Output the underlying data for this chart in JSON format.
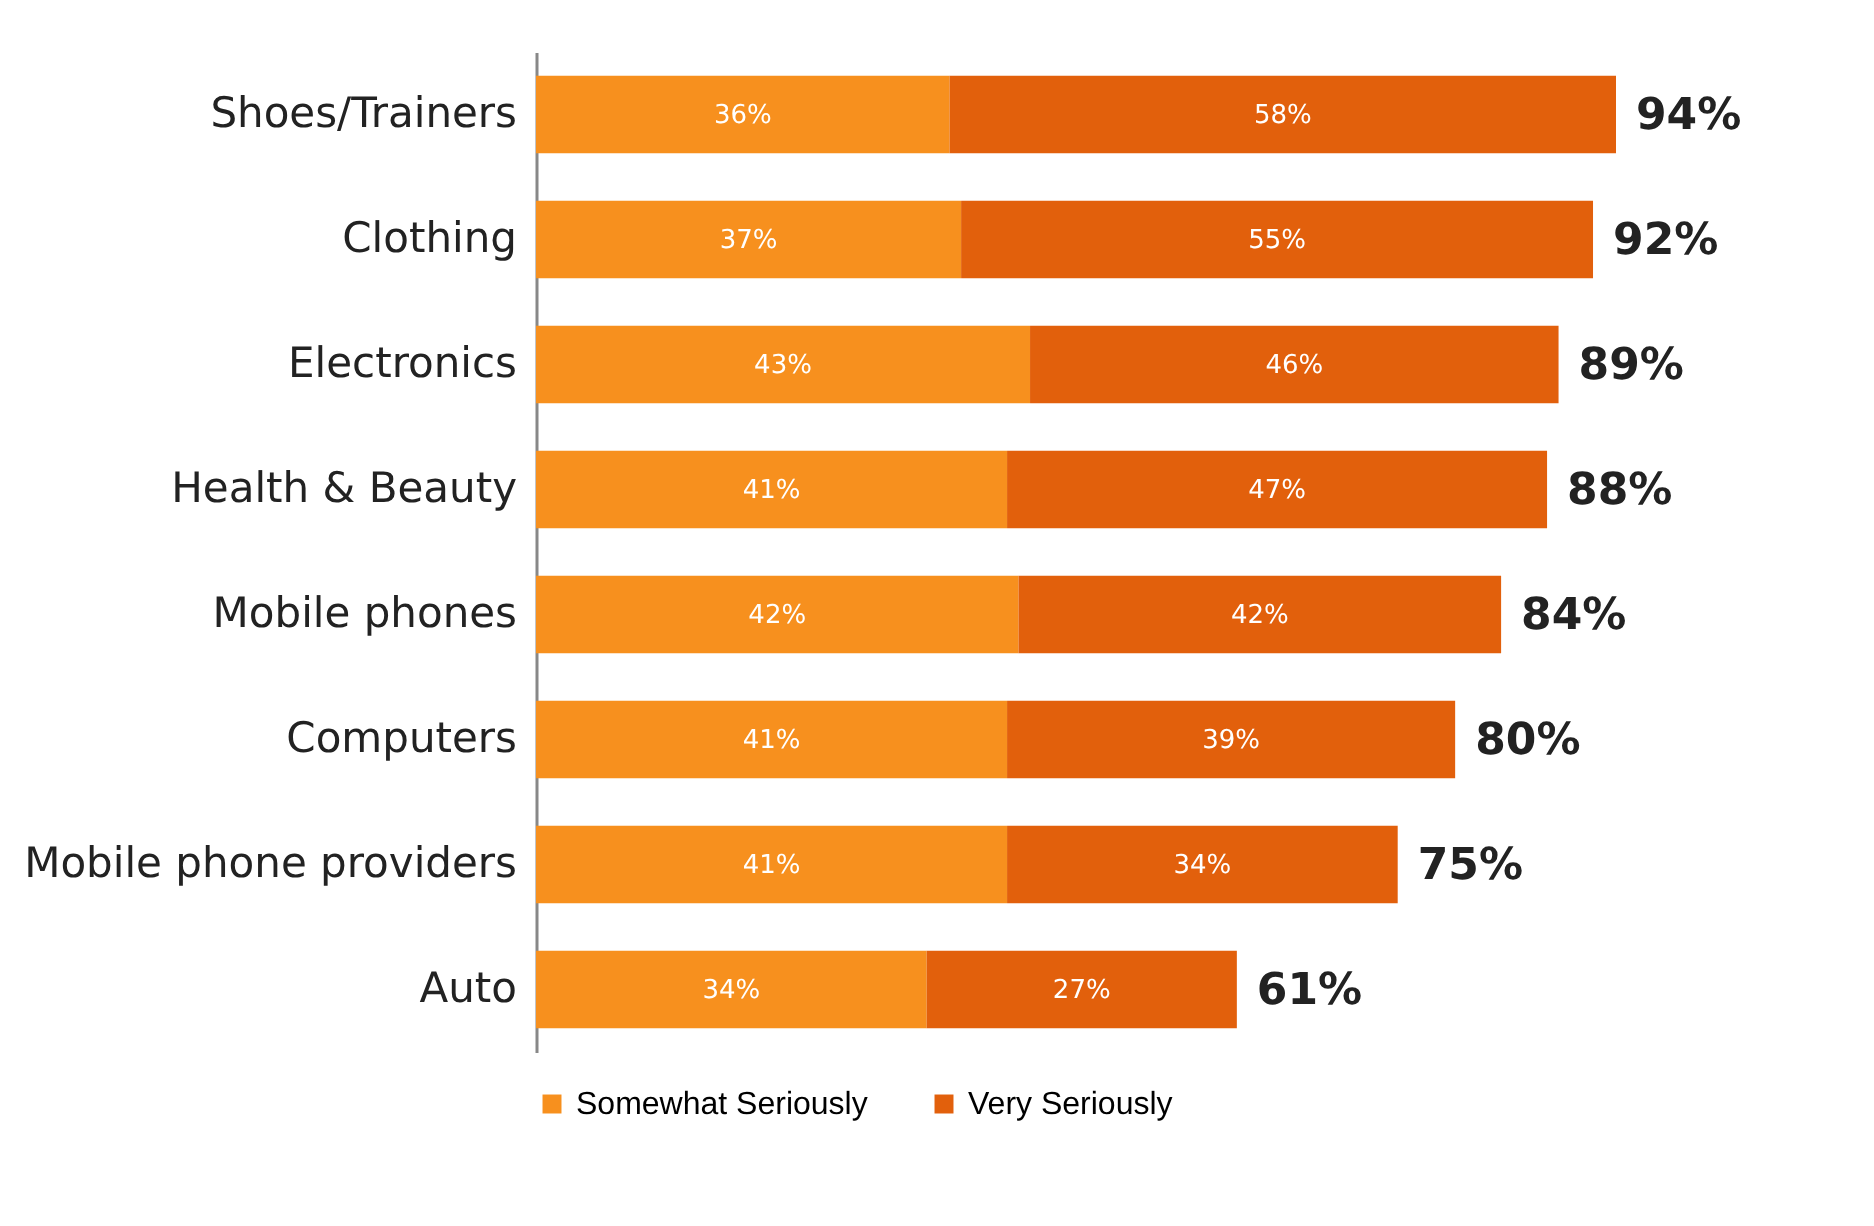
{
  "chart_data": {
    "type": "bar",
    "orientation": "horizontal",
    "stacked": true,
    "legend": "bottom left",
    "categories": [
      "Shoes/Trainers",
      "Clothing",
      "Electronics",
      "Health & Beauty",
      "Mobile phones",
      "Computers",
      "Mobile phone providers",
      "Auto"
    ],
    "series": [
      {
        "name": "Somewhat Seriously",
        "color": "#f7901e",
        "values": [
          36,
          37,
          43,
          41,
          42,
          41,
          41,
          34
        ],
        "value_labels": [
          "36%",
          "37%",
          "43%",
          "41%",
          "42%",
          "41%",
          "41%",
          "34%"
        ]
      },
      {
        "name": "Very Seriously",
        "color": "#e2600c",
        "values": [
          58,
          55,
          46,
          47,
          42,
          39,
          34,
          27
        ],
        "value_labels": [
          "58%",
          "55%",
          "46%",
          "47%",
          "42%",
          "39%",
          "34%",
          "27%"
        ]
      }
    ],
    "totals": [
      "94%",
      "92%",
      "89%",
      "88%",
      "84%",
      "80%",
      "75%",
      "61%"
    ]
  }
}
